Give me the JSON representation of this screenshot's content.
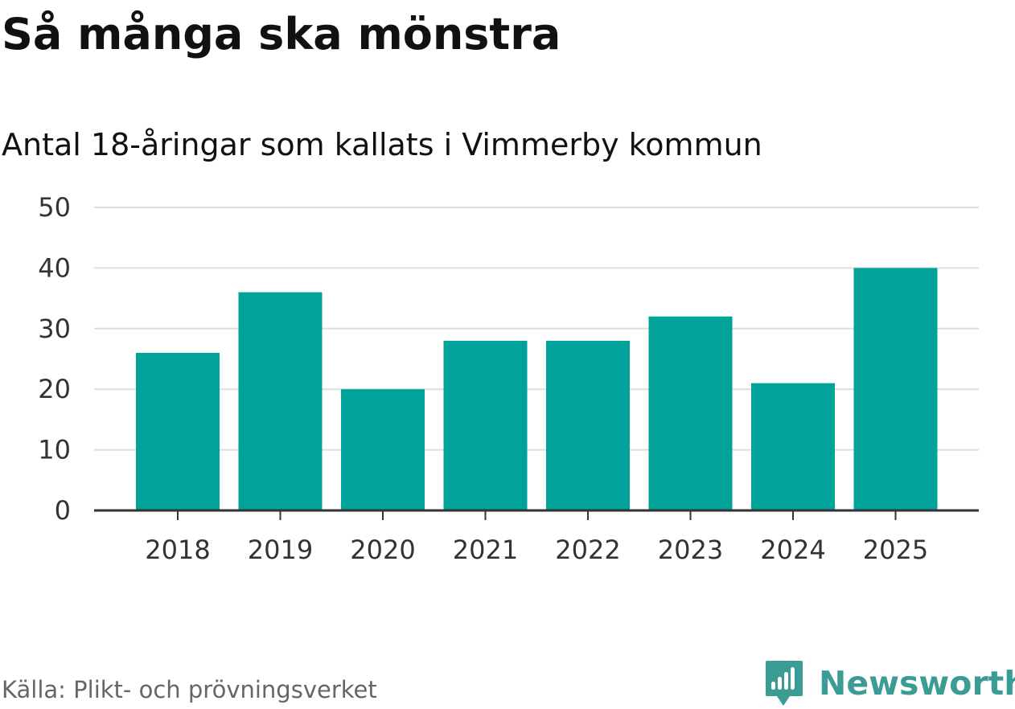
{
  "header": {
    "title": "Så många ska mönstra",
    "subtitle": "Antal 18-åringar som kallats i Vimmerby kommun"
  },
  "chart_data": {
    "type": "bar",
    "categories": [
      "2018",
      "2019",
      "2020",
      "2021",
      "2022",
      "2023",
      "2024",
      "2025"
    ],
    "values": [
      26,
      36,
      20,
      28,
      28,
      32,
      21,
      40
    ],
    "ylim": [
      0,
      50
    ],
    "yticks": [
      0,
      10,
      20,
      30,
      40,
      50
    ],
    "grid": true,
    "legend": "none",
    "bar_color": "#00a39a"
  },
  "footer": {
    "source": "Källa: Plikt- och prövningsverket",
    "brand_name": "Newsworthy",
    "brand_icon": "newsworthy-logo-icon",
    "brand_color": "#3b9c95"
  },
  "colors": {
    "grid": "#dddddd",
    "axis": "#333333",
    "text": "#111111",
    "muted": "#666666"
  }
}
